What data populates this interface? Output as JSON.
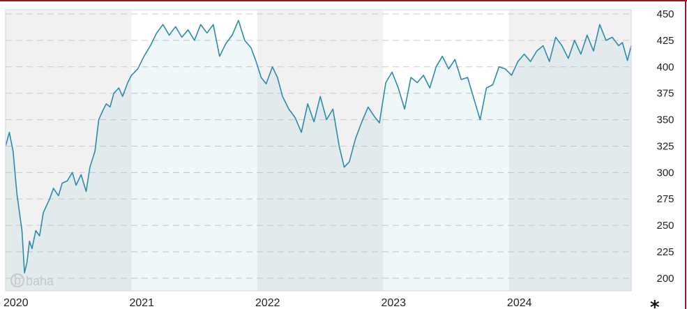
{
  "chart_data": {
    "type": "area",
    "title": "",
    "xlabel": "",
    "ylabel": "",
    "x_tick_labels": [
      "2020",
      "2021",
      "2022",
      "2023",
      "2024"
    ],
    "y_ticks": [
      200,
      225,
      250,
      275,
      300,
      325,
      350,
      375,
      400,
      425,
      450
    ],
    "ylim": [
      188,
      454
    ],
    "xlim": [
      2020.0,
      2024.97
    ],
    "grid": "horizontal dashed",
    "alternating_year_bands": true,
    "colors": {
      "line": "#2a8cad",
      "fill": "#2a8cad",
      "top_border": "#8b1a1a",
      "band_dark": "#f1f1f1",
      "band_light": "#ffffff",
      "grid": "#cccccc"
    },
    "series": [
      {
        "x": [
          2020.0,
          2020.03,
          2020.06,
          2020.09,
          2020.13,
          2020.15,
          2020.17,
          2020.19,
          2020.21,
          2020.24,
          2020.27,
          2020.3,
          2020.33,
          2020.35,
          2020.38,
          2020.42,
          2020.45,
          2020.49,
          2020.53,
          2020.56,
          2020.6,
          2020.64,
          2020.67,
          2020.71,
          2020.74,
          2020.77,
          2020.8,
          2020.83,
          2020.86,
          2020.9,
          2020.93,
          2020.97,
          2021.0,
          2021.05,
          2021.1,
          2021.15,
          2021.2,
          2021.25,
          2021.3,
          2021.35,
          2021.4,
          2021.45,
          2021.5,
          2021.55,
          2021.6,
          2021.65,
          2021.7,
          2021.75,
          2021.8,
          2021.85,
          2021.9,
          2021.95,
          2021.99,
          2022.03,
          2022.07,
          2022.12,
          2022.16,
          2022.2,
          2022.25,
          2022.3,
          2022.35,
          2022.4,
          2022.45,
          2022.5,
          2022.55,
          2022.6,
          2022.65,
          2022.69,
          2022.73,
          2022.78,
          2022.83,
          2022.88,
          2022.93,
          2022.97,
          2023.02,
          2023.07,
          2023.12,
          2023.17,
          2023.22,
          2023.27,
          2023.32,
          2023.37,
          2023.42,
          2023.47,
          2023.52,
          2023.57,
          2023.62,
          2023.67,
          2023.72,
          2023.77,
          2023.82,
          2023.87,
          2023.92,
          2023.97,
          2024.02,
          2024.07,
          2024.12,
          2024.17,
          2024.22,
          2024.27,
          2024.32,
          2024.37,
          2024.42,
          2024.47,
          2024.52,
          2024.57,
          2024.62,
          2024.67,
          2024.72,
          2024.77,
          2024.82,
          2024.87,
          2024.9,
          2024.94,
          2024.97
        ],
        "y": [
          325,
          338,
          320,
          280,
          245,
          205,
          215,
          235,
          228,
          245,
          240,
          262,
          270,
          275,
          285,
          278,
          290,
          292,
          300,
          288,
          298,
          282,
          305,
          320,
          350,
          358,
          365,
          362,
          375,
          380,
          372,
          385,
          392,
          398,
          410,
          420,
          432,
          440,
          430,
          438,
          428,
          435,
          425,
          440,
          432,
          440,
          410,
          422,
          430,
          444,
          425,
          418,
          405,
          390,
          384,
          400,
          390,
          372,
          360,
          352,
          338,
          365,
          348,
          372,
          350,
          360,
          325,
          305,
          310,
          332,
          348,
          362,
          353,
          347,
          385,
          395,
          380,
          360,
          390,
          385,
          392,
          380,
          400,
          410,
          398,
          407,
          388,
          390,
          370,
          350,
          380,
          383,
          400,
          398,
          392,
          405,
          412,
          405,
          415,
          420,
          405,
          428,
          420,
          408,
          425,
          412,
          430,
          415,
          440,
          425,
          428,
          420,
          423,
          406,
          420
        ]
      }
    ]
  },
  "watermark": {
    "text": "baha",
    "glyph": "b"
  },
  "footnote_marker": "*"
}
